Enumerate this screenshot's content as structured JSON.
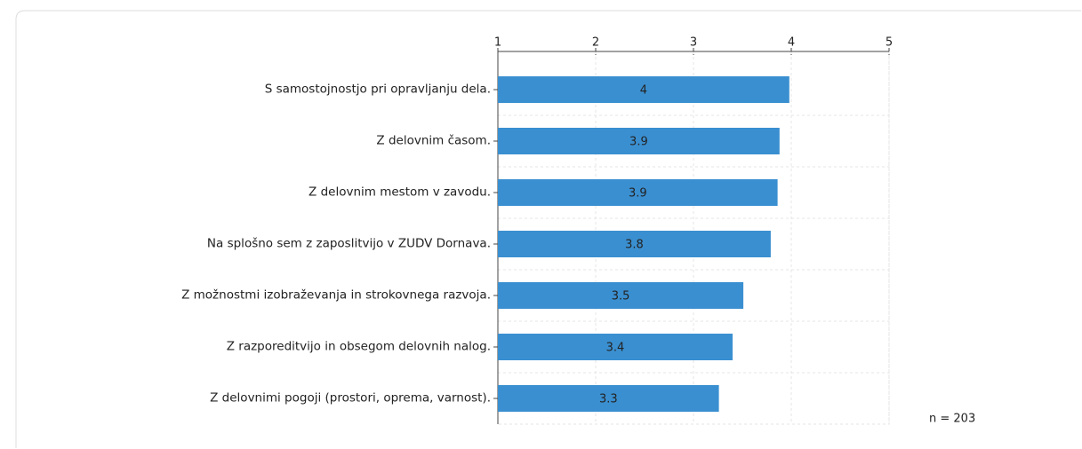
{
  "chart_data": {
    "type": "bar",
    "orientation": "horizontal",
    "categories": [
      "S samostojnostjo pri opravljanju dela.",
      "Z delovnim časom.",
      "Z delovnim mestom v zavodu.",
      "Na splošno sem z zaposlitvijo v ZUDV Dornava.",
      "Z možnostmi izobraževanja in strokovnega razvoja.",
      "Z razporeditvijo in obsegom delovnih nalog.",
      "Z delovnimi pogoji (prostori, oprema, varnost)."
    ],
    "values": [
      3.98,
      3.88,
      3.86,
      3.79,
      3.51,
      3.4,
      3.26
    ],
    "value_labels": [
      "4",
      "3.9",
      "3.9",
      "3.8",
      "3.5",
      "3.4",
      "3.3"
    ],
    "color": "#3a8fd0",
    "xlim": [
      1,
      5
    ],
    "xticks": [
      1,
      2,
      3,
      4,
      5
    ],
    "grid": true,
    "annotation": "n = 203"
  }
}
